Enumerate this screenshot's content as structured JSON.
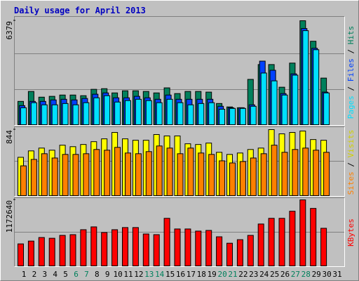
{
  "chart_data": [
    {
      "type": "bar",
      "title": "Daily usage for April 2013",
      "ylim": [
        0,
        6379
      ],
      "yticks": [
        6379
      ],
      "series": [
        {
          "name": "Hits",
          "color": "#00805c",
          "values": [
            1430,
            2040,
            1690,
            1740,
            1820,
            1820,
            1780,
            2170,
            2210,
            1950,
            2080,
            2080,
            2040,
            1950,
            2260,
            1910,
            2040,
            2040,
            2000,
            1300,
            1090,
            1040,
            2780,
            3690,
            3690,
            2300,
            3780,
            6379,
            5120,
            2860,
            null
          ]
        },
        {
          "name": "Files",
          "color": "#0040ff",
          "values": [
            1170,
            1430,
            1430,
            1520,
            1560,
            1520,
            1610,
            1870,
            1950,
            1650,
            1650,
            1740,
            1650,
            1560,
            1820,
            1560,
            1560,
            1560,
            1560,
            1130,
            1040,
            1040,
            1220,
            3900,
            3340,
            1910,
            3120,
            5900,
            4690,
            2000,
            null
          ]
        },
        {
          "name": "Pages",
          "color": "#00e0ff",
          "values": [
            1040,
            1350,
            1220,
            1220,
            1300,
            1220,
            1350,
            1650,
            1780,
            1390,
            1480,
            1560,
            1480,
            1350,
            1560,
            1350,
            1220,
            1300,
            1350,
            950,
            1000,
            1000,
            1130,
            3170,
            2690,
            1820,
            3040,
            5770,
            4600,
            1950,
            null
          ]
        }
      ]
    },
    {
      "type": "bar",
      "ylim": [
        0,
        844
      ],
      "yticks": [
        844
      ],
      "series": [
        {
          "name": "Visits",
          "color": "#ffff00",
          "values": [
            490,
            572,
            608,
            581,
            645,
            626,
            654,
            690,
            726,
            808,
            726,
            708,
            708,
            781,
            763,
            763,
            663,
            654,
            672,
            554,
            527,
            545,
            590,
            608,
            844,
            790,
            808,
            826,
            717,
            708,
            null
          ]
        },
        {
          "name": "Sites",
          "color": "#ff8000",
          "values": [
            381,
            463,
            536,
            481,
            527,
            527,
            536,
            590,
            581,
            617,
            545,
            536,
            563,
            635,
            608,
            536,
            608,
            545,
            527,
            445,
            418,
            436,
            481,
            536,
            645,
            554,
            590,
            608,
            581,
            554,
            null
          ]
        }
      ]
    },
    {
      "type": "bar",
      "ylim": [
        0,
        1172640
      ],
      "yticks": [
        1172640
      ],
      "categories": [
        "1",
        "2",
        "3",
        "4",
        "5",
        "6",
        "7",
        "8",
        "9",
        "10",
        "11",
        "12",
        "13",
        "14",
        "15",
        "16",
        "17",
        "18",
        "19",
        "20",
        "21",
        "22",
        "23",
        "24",
        "25",
        "26",
        "27",
        "28",
        "29",
        "30",
        "31"
      ],
      "category_colors": [
        "#000000",
        "#000000",
        "#000000",
        "#000000",
        "#000000",
        "#00805c",
        "#00805c",
        "#000000",
        "#000000",
        "#000000",
        "#000000",
        "#000000",
        "#00805c",
        "#00805c",
        "#000000",
        "#000000",
        "#000000",
        "#000000",
        "#000000",
        "#00805c",
        "#00805c",
        "#000000",
        "#000000",
        "#000000",
        "#000000",
        "#000000",
        "#00805c",
        "#00805c",
        "#000000",
        "#000000",
        "#000000"
      ],
      "series": [
        {
          "name": "KBytes",
          "color": "#ff0000",
          "values": [
            391000,
            441000,
            504000,
            491000,
            542000,
            555000,
            643000,
            693000,
            593000,
            643000,
            681000,
            681000,
            567000,
            555000,
            845000,
            656000,
            656000,
            618000,
            630000,
            517000,
            403000,
            466000,
            542000,
            744000,
            845000,
            845000,
            971000,
            1172640,
            1021000,
            668000,
            null
          ]
        }
      ]
    }
  ]
}
